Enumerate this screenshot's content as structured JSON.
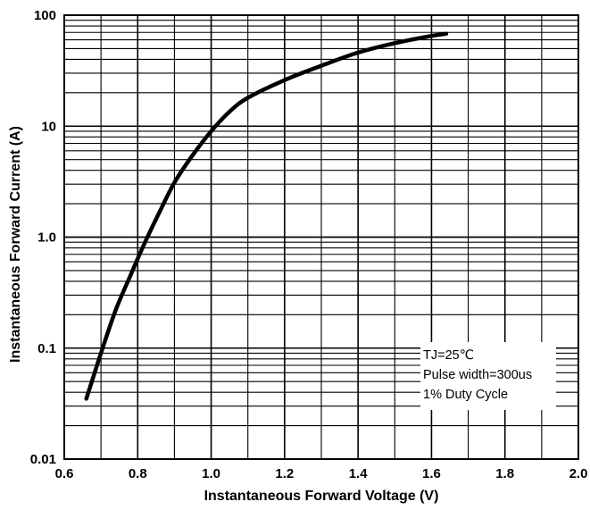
{
  "chart_data": {
    "type": "line",
    "title": "",
    "xlabel": "Instantaneous Forward Voltage (V)",
    "ylabel": "Instantaneous Forward Current (A)",
    "xlim": [
      0.6,
      2.0
    ],
    "ylim": [
      0.01,
      100
    ],
    "yscale": "log",
    "grid": true,
    "x_ticks": [
      "0.6",
      "0.8",
      "1.0",
      "1.2",
      "1.4",
      "1.6",
      "1.8",
      "2.0"
    ],
    "y_ticks": [
      "0.01",
      "0.1",
      "1.0",
      "10",
      "100"
    ],
    "annotations": [
      "TJ=25℃",
      "Pulse width=300us",
      "1% Duty Cycle"
    ],
    "series": [
      {
        "x": [
          0.66,
          0.7,
          0.74,
          0.78,
          0.82,
          0.86,
          0.9,
          0.95,
          1.0,
          1.05,
          1.1,
          1.2,
          1.3,
          1.4,
          1.5,
          1.6,
          1.64
        ],
        "y": [
          0.035,
          0.09,
          0.22,
          0.45,
          0.9,
          1.7,
          3.1,
          5.5,
          9.0,
          13.5,
          18.0,
          26.0,
          35.0,
          46.0,
          56.0,
          65.0,
          68.0
        ]
      }
    ]
  }
}
